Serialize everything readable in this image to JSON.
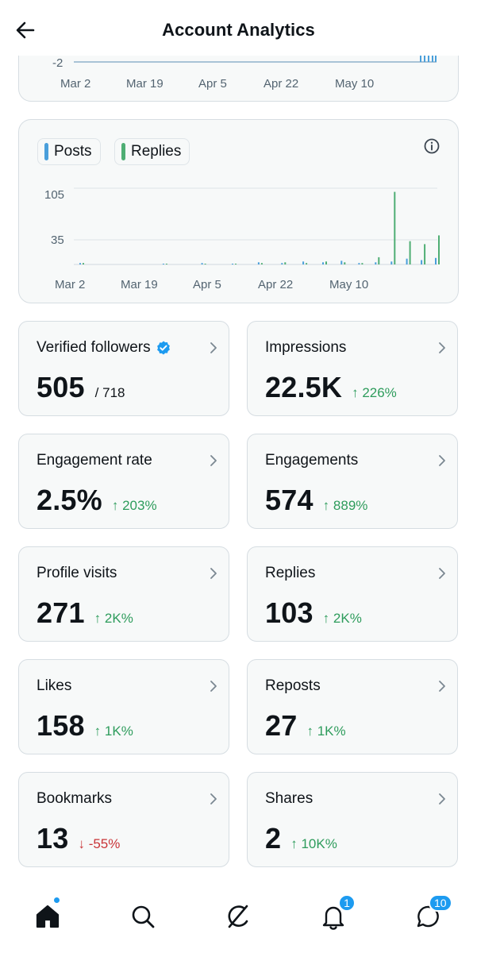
{
  "header": {
    "title": "Account Analytics",
    "back_icon": "arrow-left-icon"
  },
  "top_chart": {
    "y_tick": "-2",
    "x_ticks": [
      "Mar 2",
      "Mar 19",
      "Apr 5",
      "Apr 22",
      "May 10"
    ]
  },
  "chart_data": {
    "type": "bar",
    "legend": [
      {
        "name": "Posts",
        "color": "#4a9fdb"
      },
      {
        "name": "Replies",
        "color": "#4fae74"
      }
    ],
    "y_ticks": [
      "105",
      "35"
    ],
    "x_ticks": [
      "Mar 2",
      "Mar 19",
      "Apr 5",
      "Apr 22",
      "May 10"
    ],
    "ylim": [
      0,
      105
    ],
    "series": [
      {
        "name": "Posts",
        "values": [
          2,
          1,
          2,
          1,
          3,
          2,
          4,
          3,
          5,
          2,
          3,
          4,
          8,
          6,
          9
        ]
      },
      {
        "name": "Replies",
        "values": [
          2,
          1,
          1,
          1,
          2,
          3,
          2,
          4,
          3,
          2,
          10,
          100,
          32,
          28,
          40
        ]
      }
    ]
  },
  "stats": [
    {
      "label": "Verified followers",
      "value": "505",
      "sub": "/ 718",
      "delta": "",
      "direction": "none",
      "verified": true
    },
    {
      "label": "Impressions",
      "value": "22.5K",
      "sub": "",
      "delta": "226%",
      "direction": "up"
    },
    {
      "label": "Engagement rate",
      "value": "2.5%",
      "sub": "",
      "delta": "203%",
      "direction": "up"
    },
    {
      "label": "Engagements",
      "value": "574",
      "sub": "",
      "delta": "889%",
      "direction": "up"
    },
    {
      "label": "Profile visits",
      "value": "271",
      "sub": "",
      "delta": "2K%",
      "direction": "up"
    },
    {
      "label": "Replies",
      "value": "103",
      "sub": "",
      "delta": "2K%",
      "direction": "up"
    },
    {
      "label": "Likes",
      "value": "158",
      "sub": "",
      "delta": "1K%",
      "direction": "up"
    },
    {
      "label": "Reposts",
      "value": "27",
      "sub": "",
      "delta": "1K%",
      "direction": "up"
    },
    {
      "label": "Bookmarks",
      "value": "13",
      "sub": "",
      "delta": "-55%",
      "direction": "down"
    },
    {
      "label": "Shares",
      "value": "2",
      "sub": "",
      "delta": "10K%",
      "direction": "up"
    }
  ],
  "bottom_nav": {
    "items": [
      "home-icon",
      "search-icon",
      "grok-icon",
      "bell-icon",
      "messages-icon"
    ],
    "notifications_badge": "1",
    "messages_badge": "10"
  },
  "colors": {
    "up": "#2e9c5c",
    "down": "#c93538",
    "accent": "#1d9bf0"
  }
}
